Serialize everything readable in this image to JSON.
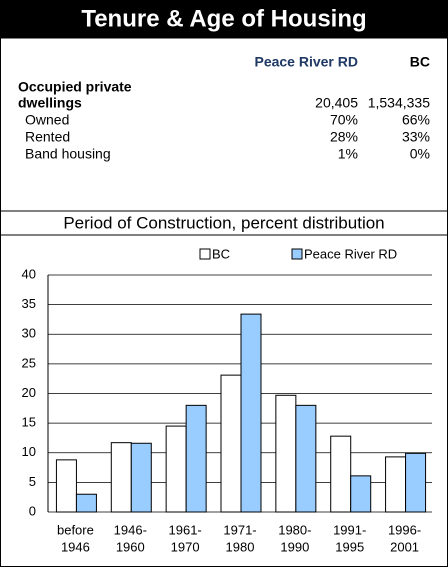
{
  "header": {
    "title": "Tenure & Age of Housing"
  },
  "table": {
    "columns": [
      "Peace River RD",
      "BC"
    ],
    "rows": [
      {
        "label": [
          "Occupied private",
          "dwellings"
        ],
        "cells": [
          "20,405",
          "1,534,335"
        ]
      },
      {
        "label": [
          "Owned"
        ],
        "cells": [
          "70%",
          "66%"
        ]
      },
      {
        "label": [
          "Rented"
        ],
        "cells": [
          "28%",
          "33%"
        ]
      },
      {
        "label": [
          "Band housing"
        ],
        "cells": [
          "1%",
          "0%"
        ]
      }
    ]
  },
  "chart_data": {
    "type": "bar",
    "title": "Period of Construction, percent distribution",
    "categories": [
      [
        "before",
        "1946"
      ],
      [
        "1946-",
        "1960"
      ],
      [
        "1961-",
        "1970"
      ],
      [
        "1971-",
        "1980"
      ],
      [
        "1980-",
        "1990"
      ],
      [
        "1991-",
        "1995"
      ],
      [
        "1996-",
        "2001"
      ]
    ],
    "series": [
      {
        "name": "BC",
        "color": "#ffffff",
        "values": [
          8.8,
          11.7,
          14.5,
          23.1,
          19.7,
          12.8,
          9.3
        ]
      },
      {
        "name": "Peace River RD",
        "color": "#99ccff",
        "values": [
          3.0,
          11.6,
          18.0,
          33.4,
          18.0,
          6.1,
          9.9
        ]
      }
    ],
    "ylim": [
      0,
      40
    ],
    "yticks": [
      0,
      5,
      10,
      15,
      20,
      25,
      30,
      35,
      40
    ],
    "grid": true,
    "legend": "top"
  }
}
